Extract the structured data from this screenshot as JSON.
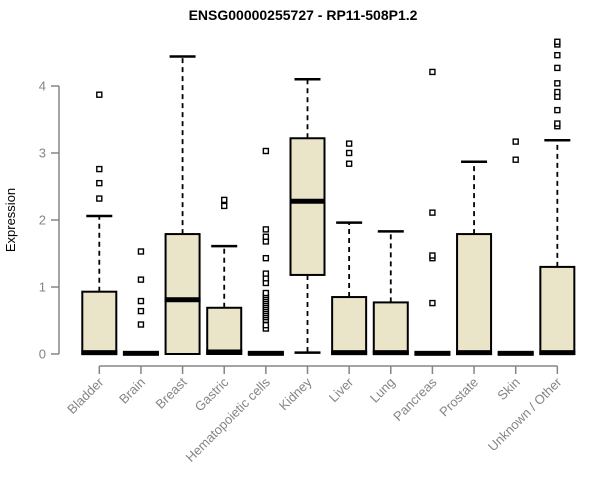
{
  "chart_data": {
    "type": "boxplot",
    "title": "ENSG00000255727 - RP11-508P1.2",
    "ylabel": "Expression",
    "xlabel": "",
    "ylim": [
      0,
      4.7
    ],
    "yticks": [
      0,
      1,
      2,
      3,
      4
    ],
    "grid": false,
    "legend": "none",
    "categories": [
      "Bladder",
      "Brain",
      "Breast",
      "Gastric",
      "Hematopoietic cells",
      "Kidney",
      "Liver",
      "Lung",
      "Pancreas",
      "Prostate",
      "Skin",
      "Unknown / Other"
    ],
    "boxes": [
      {
        "category": "Bladder",
        "whisker_low": 0,
        "q1": 0,
        "median": 0.02,
        "q3": 0.93,
        "whisker_high": 2.06,
        "outliers": [
          2.32,
          2.55,
          2.76,
          3.87
        ]
      },
      {
        "category": "Brain",
        "whisker_low": 0,
        "q1": 0,
        "median": 0.01,
        "q3": 0.02,
        "whisker_high": 0.02,
        "outliers": [
          0.44,
          0.64,
          0.79,
          1.11,
          1.53
        ]
      },
      {
        "category": "Breast",
        "whisker_low": 0,
        "q1": 0,
        "median": 0.81,
        "q3": 1.79,
        "whisker_high": 4.44,
        "outliers": []
      },
      {
        "category": "Gastric",
        "whisker_low": 0,
        "q1": 0,
        "median": 0.03,
        "q3": 0.69,
        "whisker_high": 1.61,
        "outliers": [
          2.21,
          2.3
        ]
      },
      {
        "category": "Hematopoietic cells",
        "whisker_low": 0,
        "q1": 0,
        "median": 0.01,
        "q3": 0.02,
        "whisker_high": 0.02,
        "outliers": [
          0.38,
          0.43,
          0.51,
          0.55,
          0.58,
          0.61,
          0.64,
          0.67,
          0.7,
          0.73,
          0.76,
          0.79,
          0.82,
          0.85,
          0.88,
          0.91,
          1.06,
          1.13,
          1.2,
          1.43,
          1.68,
          1.75,
          1.86,
          3.03
        ]
      },
      {
        "category": "Kidney",
        "whisker_low": 0.02,
        "q1": 1.18,
        "median": 2.28,
        "q3": 3.22,
        "whisker_high": 4.1,
        "outliers": []
      },
      {
        "category": "Liver",
        "whisker_low": 0,
        "q1": 0,
        "median": 0.02,
        "q3": 0.85,
        "whisker_high": 1.96,
        "outliers": [
          2.84,
          3.0,
          3.14
        ]
      },
      {
        "category": "Lung",
        "whisker_low": 0,
        "q1": 0,
        "median": 0.02,
        "q3": 0.77,
        "whisker_high": 1.83,
        "outliers": []
      },
      {
        "category": "Pancreas",
        "whisker_low": 0,
        "q1": 0,
        "median": 0.01,
        "q3": 0.02,
        "whisker_high": 0.02,
        "outliers": [
          0.76,
          1.43,
          1.47,
          2.11,
          4.21
        ]
      },
      {
        "category": "Prostate",
        "whisker_low": 0,
        "q1": 0,
        "median": 0.02,
        "q3": 1.79,
        "whisker_high": 2.87,
        "outliers": []
      },
      {
        "category": "Skin",
        "whisker_low": 0,
        "q1": 0,
        "median": 0.01,
        "q3": 0.02,
        "whisker_high": 0.02,
        "outliers": [
          2.9,
          3.17
        ]
      },
      {
        "category": "Unknown / Other",
        "whisker_low": 0,
        "q1": 0,
        "median": 0.02,
        "q3": 1.3,
        "whisker_high": 3.19,
        "outliers": [
          3.4,
          3.44,
          3.64,
          3.84,
          3.91,
          4.04,
          4.27,
          4.46,
          4.62,
          4.66
        ]
      }
    ]
  },
  "colors": {
    "box_fill": "#EAE4C8",
    "box_stroke": "#000000",
    "median": "#000000",
    "whisker": "#000000",
    "outlier_stroke": "#000000",
    "outlier_fill": "#ffffff",
    "axis": "#858585",
    "tick_label": "#858585",
    "title": "#000000",
    "background": "#ffffff"
  }
}
